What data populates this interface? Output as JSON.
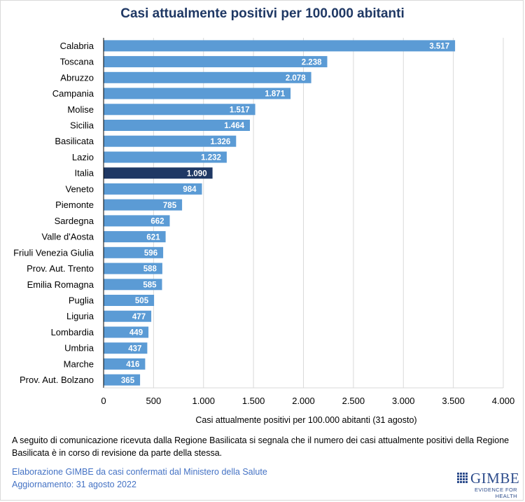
{
  "chart_data": {
    "type": "bar",
    "orientation": "horizontal",
    "title": "Casi attualmente positivi per 100.000 abitanti",
    "xlabel": "Casi attualmente positivi per 100.000 abitanti (31 agosto)",
    "ylabel": "",
    "xlim": [
      0,
      4000
    ],
    "xticks": [
      0,
      500,
      1000,
      1500,
      2000,
      2500,
      3000,
      3500,
      4000
    ],
    "xtick_labels": [
      "0",
      "500",
      "1.000",
      "1.500",
      "2.000",
      "2.500",
      "3.000",
      "3.500",
      "4.000"
    ],
    "grid": "vertical",
    "categories": [
      "Calabria",
      "Toscana",
      "Abruzzo",
      "Campania",
      "Molise",
      "Sicilia",
      "Basilicata",
      "Lazio",
      "Italia",
      "Veneto",
      "Piemonte",
      "Sardegna",
      "Valle d'Aosta",
      "Friuli Venezia Giulia",
      "Prov. Aut. Trento",
      "Emilia Romagna",
      "Puglia",
      "Liguria",
      "Lombardia",
      "Umbria",
      "Marche",
      "Prov. Aut. Bolzano"
    ],
    "values": [
      3517,
      2238,
      2078,
      1871,
      1517,
      1464,
      1326,
      1232,
      1090,
      984,
      785,
      662,
      621,
      596,
      588,
      585,
      505,
      477,
      449,
      437,
      416,
      365
    ],
    "value_labels": [
      "3.517",
      "2.238",
      "2.078",
      "1.871",
      "1.517",
      "1.464",
      "1.326",
      "1.232",
      "1.090",
      "984",
      "785",
      "662",
      "621",
      "596",
      "588",
      "585",
      "505",
      "477",
      "449",
      "437",
      "416",
      "365"
    ],
    "highlight": "Italia",
    "colors": {
      "bar": "#5b9bd5",
      "highlight": "#1f3864",
      "label": "#ffffff",
      "grid": "#d9d9d9",
      "axis": "#000000",
      "title": "#1f3864"
    }
  },
  "note": "A seguito di comunicazione ricevuta dalla Regione Basilicata si segnala che il numero dei casi attualmente positivi della Regione Basilicata è in corso di revisione da parte della stessa.",
  "footer": {
    "line1": "Elaborazione GIMBE da casi confermati dal Ministero della Salute",
    "line2": "Aggiornamento: 31 agosto 2022"
  },
  "logo": {
    "word": "GIMBE",
    "tagline": "EVIDENCE FOR HEALTH",
    "color": "#2e4d8c"
  }
}
